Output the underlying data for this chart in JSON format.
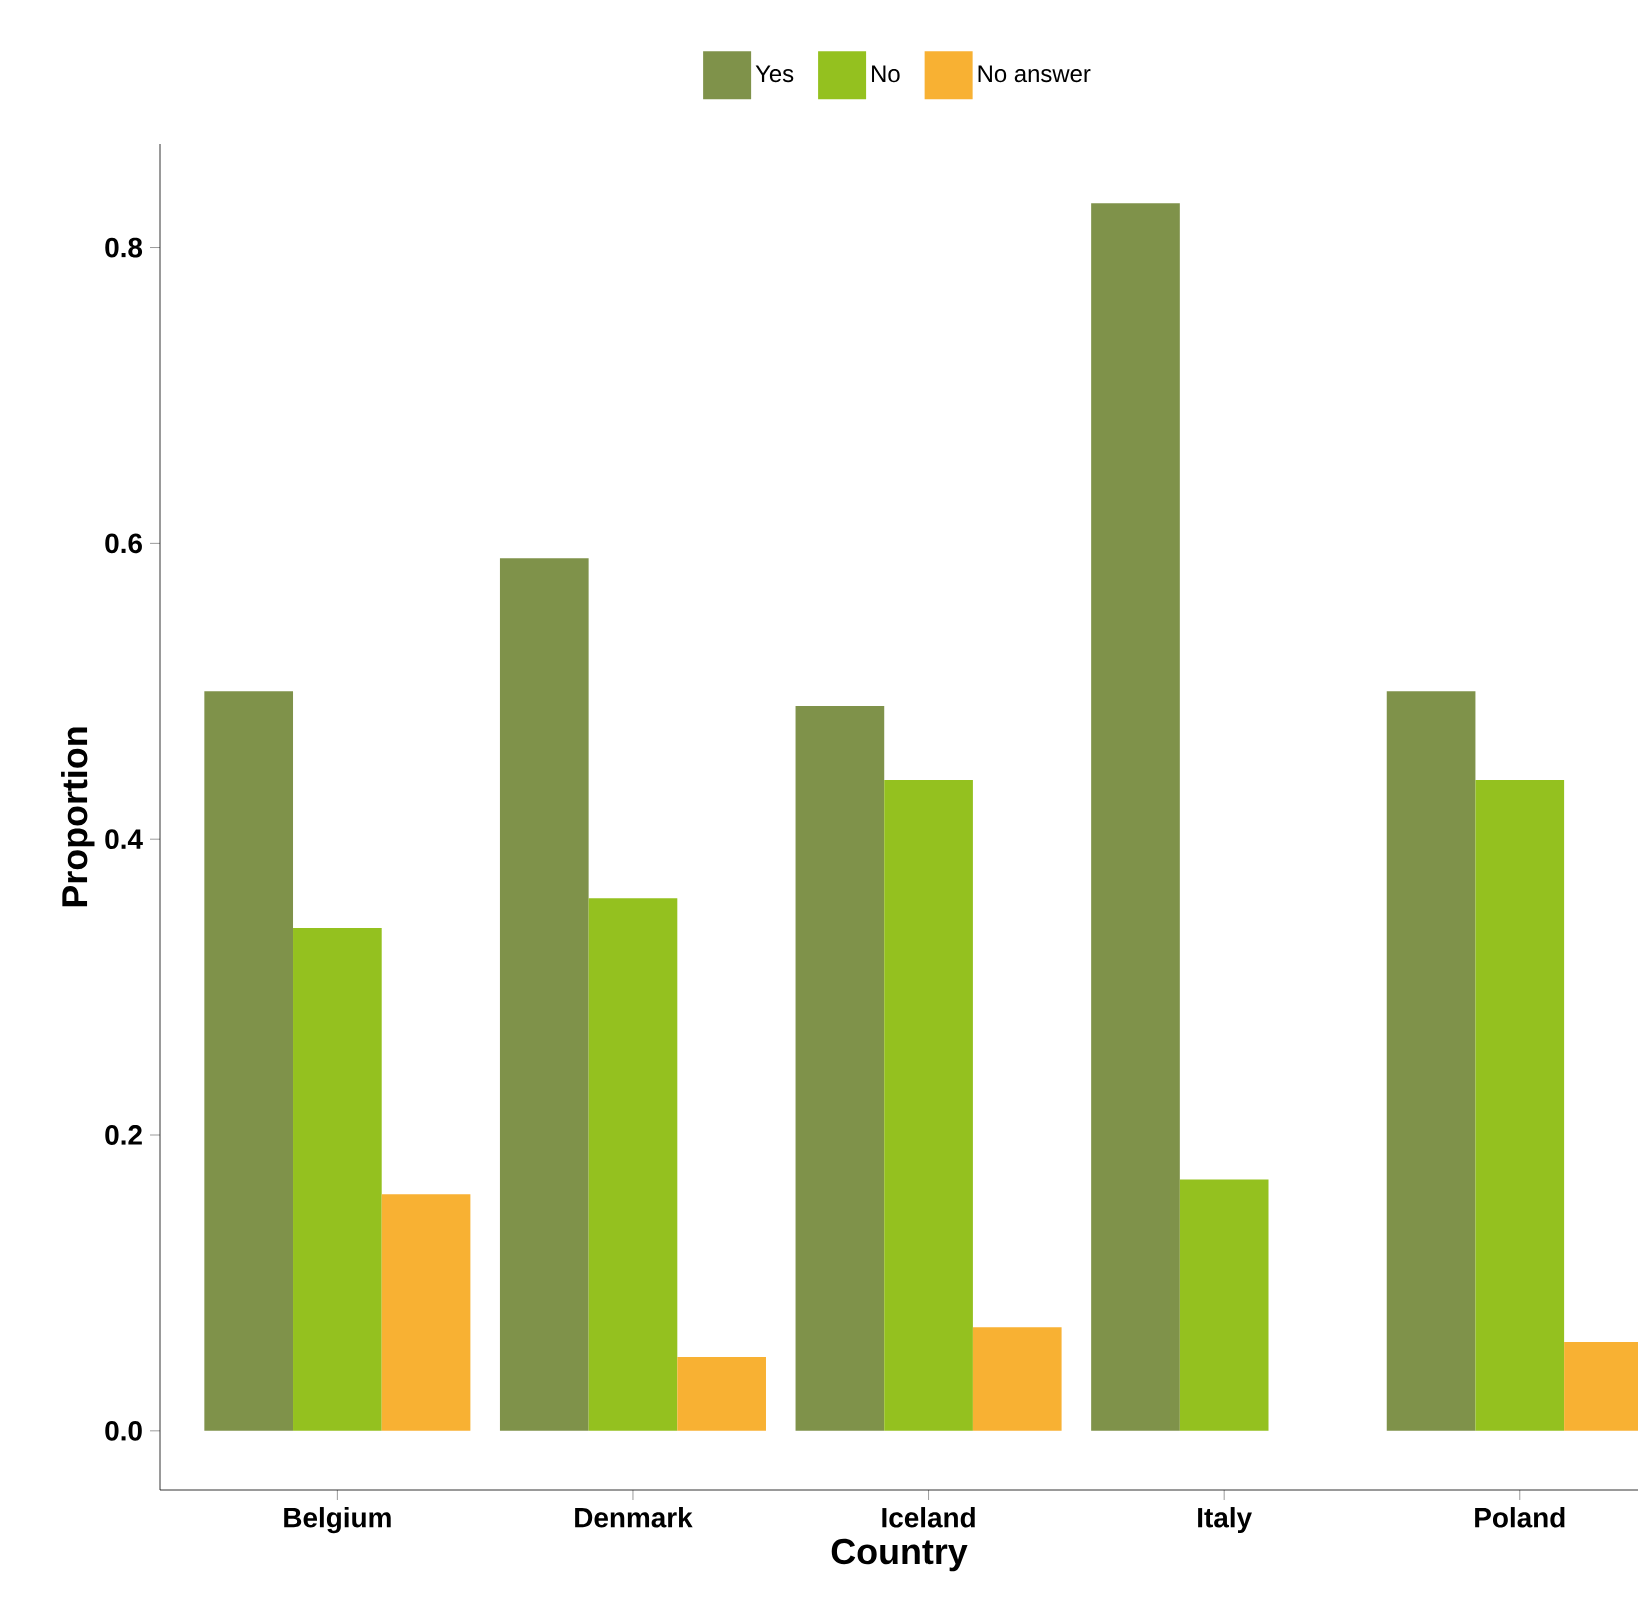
{
  "chart_data": {
    "type": "bar",
    "xlabel": "Country",
    "ylabel": "Proportion",
    "categories": [
      "Belgium",
      "Denmark",
      "Iceland",
      "Italy",
      "Poland"
    ],
    "series": [
      {
        "name": "Yes",
        "color": "#7f924a",
        "values": [
          0.5,
          0.59,
          0.49,
          0.83,
          0.5
        ]
      },
      {
        "name": "No",
        "color": "#94c11f",
        "values": [
          0.34,
          0.36,
          0.44,
          0.17,
          0.44
        ]
      },
      {
        "name": "No answer",
        "color": "#f8b133",
        "values": [
          0.16,
          0.05,
          0.07,
          null,
          0.06
        ]
      }
    ],
    "ylim": [
      -0.04,
      0.87
    ],
    "yticks": [
      {
        "value": 0,
        "label": "0.0"
      },
      0.2,
      0.4,
      0.6,
      0.8
    ],
    "legend": "top"
  }
}
